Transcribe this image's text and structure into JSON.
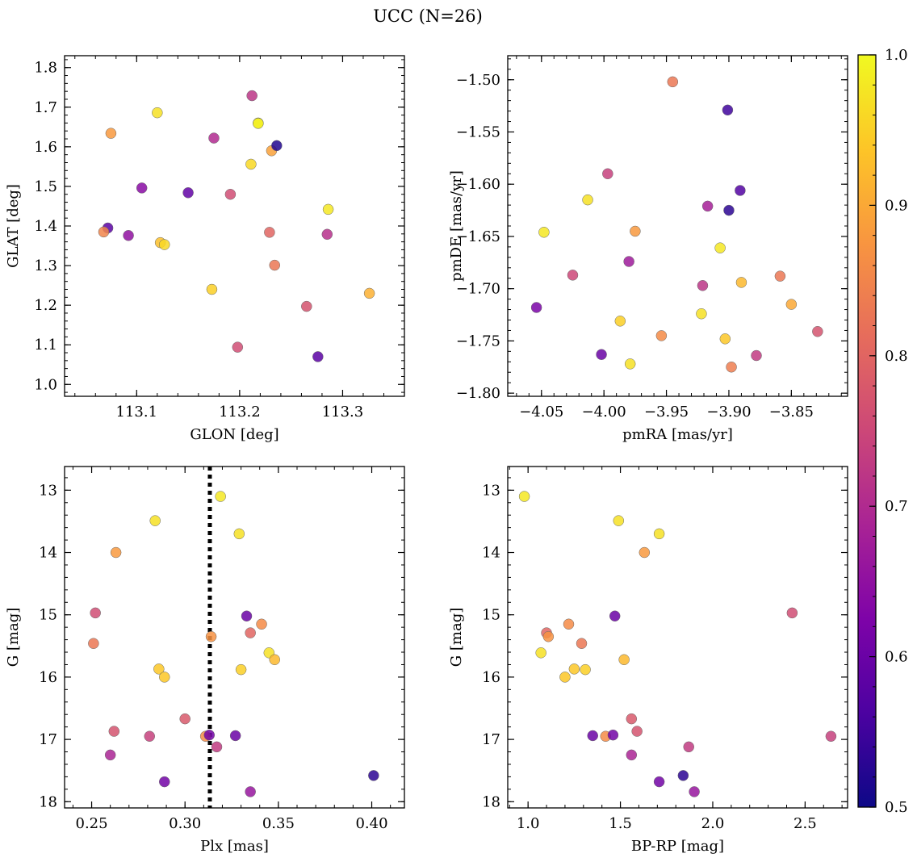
{
  "title": "UCC (N=26)",
  "colorbar": {
    "range": [
      0.5,
      1.0
    ],
    "ticks": [
      0.5,
      0.6,
      0.7,
      0.8,
      0.9,
      1.0
    ],
    "tick_labels": [
      "0.5",
      "0.6",
      "0.7",
      "0.8",
      "0.9",
      "1.0"
    ],
    "colormap": "plasma"
  },
  "chart_data": [
    {
      "type": "scatter",
      "xlabel": "GLON [deg]",
      "ylabel": "GLAT [deg]",
      "xlim": [
        113.03,
        113.36
      ],
      "ylim": [
        0.97,
        1.83
      ],
      "xticks": [
        113.1,
        113.2,
        113.3
      ],
      "xtick_labels": [
        "113.1",
        "113.2",
        "113.3"
      ],
      "yticks": [
        1.0,
        1.1,
        1.2,
        1.3,
        1.4,
        1.5,
        1.6,
        1.7,
        1.8
      ],
      "ytick_labels": [
        "1.0",
        "1.1",
        "1.2",
        "1.3",
        "1.4",
        "1.5",
        "1.6",
        "1.7",
        "1.8"
      ],
      "y_inverted": false,
      "points": [
        {
          "x": 113.075,
          "y": 1.634,
          "c": 0.88
        },
        {
          "x": 113.072,
          "y": 1.395,
          "c": 0.58
        },
        {
          "x": 113.068,
          "y": 1.385,
          "c": 0.85
        },
        {
          "x": 113.092,
          "y": 1.376,
          "c": 0.65
        },
        {
          "x": 113.105,
          "y": 1.496,
          "c": 0.64
        },
        {
          "x": 113.12,
          "y": 1.686,
          "c": 0.97
        },
        {
          "x": 113.123,
          "y": 1.358,
          "c": 0.93
        },
        {
          "x": 113.127,
          "y": 1.353,
          "c": 0.96
        },
        {
          "x": 113.15,
          "y": 1.484,
          "c": 0.59
        },
        {
          "x": 113.173,
          "y": 1.24,
          "c": 0.95
        },
        {
          "x": 113.175,
          "y": 1.622,
          "c": 0.7
        },
        {
          "x": 113.191,
          "y": 1.48,
          "c": 0.76
        },
        {
          "x": 113.198,
          "y": 1.094,
          "c": 0.76
        },
        {
          "x": 113.211,
          "y": 1.556,
          "c": 0.96
        },
        {
          "x": 113.212,
          "y": 1.729,
          "c": 0.72
        },
        {
          "x": 113.218,
          "y": 1.66,
          "c": 0.98
        },
        {
          "x": 113.229,
          "y": 1.384,
          "c": 0.8
        },
        {
          "x": 113.231,
          "y": 1.59,
          "c": 0.89
        },
        {
          "x": 113.234,
          "y": 1.301,
          "c": 0.83
        },
        {
          "x": 113.236,
          "y": 1.603,
          "c": 0.52
        },
        {
          "x": 113.265,
          "y": 1.197,
          "c": 0.77
        },
        {
          "x": 113.276,
          "y": 1.07,
          "c": 0.58
        },
        {
          "x": 113.285,
          "y": 1.379,
          "c": 0.71
        },
        {
          "x": 113.286,
          "y": 1.442,
          "c": 0.98
        },
        {
          "x": 113.326,
          "y": 1.23,
          "c": 0.91
        },
        {
          "x": 113.218,
          "y": 1.659,
          "c": 0.99
        }
      ]
    },
    {
      "type": "scatter",
      "xlabel": "pmRA [mas/yr]",
      "ylabel": "pmDE [mas/yr]",
      "xlim": [
        -4.077,
        -3.805
      ],
      "ylim": [
        -1.803,
        -1.477
      ],
      "xticks": [
        -4.05,
        -4.0,
        -3.95,
        -3.9,
        -3.85
      ],
      "xtick_labels": [
        "−4.05",
        "−4.00",
        "−3.95",
        "−3.90",
        "−3.85"
      ],
      "yticks": [
        -1.8,
        -1.75,
        -1.7,
        -1.65,
        -1.6,
        -1.55,
        -1.5
      ],
      "ytick_labels": [
        "−1.80",
        "−1.75",
        "−1.70",
        "−1.65",
        "−1.60",
        "−1.55",
        "−1.50"
      ],
      "y_inverted": false,
      "points": [
        {
          "x": -4.054,
          "y": -1.718,
          "c": 0.62
        },
        {
          "x": -4.048,
          "y": -1.646,
          "c": 0.98
        },
        {
          "x": -4.025,
          "y": -1.687,
          "c": 0.75
        },
        {
          "x": -4.013,
          "y": -1.615,
          "c": 0.97
        },
        {
          "x": -4.002,
          "y": -1.763,
          "c": 0.6
        },
        {
          "x": -3.997,
          "y": -1.59,
          "c": 0.74
        },
        {
          "x": -3.987,
          "y": -1.731,
          "c": 0.95
        },
        {
          "x": -3.98,
          "y": -1.674,
          "c": 0.67
        },
        {
          "x": -3.979,
          "y": -1.772,
          "c": 0.97
        },
        {
          "x": -3.975,
          "y": -1.645,
          "c": 0.88
        },
        {
          "x": -3.954,
          "y": -1.745,
          "c": 0.86
        },
        {
          "x": -3.945,
          "y": -1.502,
          "c": 0.83
        },
        {
          "x": -3.922,
          "y": -1.724,
          "c": 0.97
        },
        {
          "x": -3.921,
          "y": -1.697,
          "c": 0.72
        },
        {
          "x": -3.917,
          "y": -1.621,
          "c": 0.68
        },
        {
          "x": -3.907,
          "y": -1.661,
          "c": 0.98
        },
        {
          "x": -3.903,
          "y": -1.748,
          "c": 0.94
        },
        {
          "x": -3.901,
          "y": -1.529,
          "c": 0.55
        },
        {
          "x": -3.9,
          "y": -1.625,
          "c": 0.53
        },
        {
          "x": -3.898,
          "y": -1.775,
          "c": 0.84
        },
        {
          "x": -3.891,
          "y": -1.606,
          "c": 0.57
        },
        {
          "x": -3.89,
          "y": -1.694,
          "c": 0.92
        },
        {
          "x": -3.878,
          "y": -1.764,
          "c": 0.73
        },
        {
          "x": -3.859,
          "y": -1.688,
          "c": 0.83
        },
        {
          "x": -3.85,
          "y": -1.715,
          "c": 0.9
        },
        {
          "x": -3.829,
          "y": -1.741,
          "c": 0.77
        }
      ]
    },
    {
      "type": "scatter",
      "xlabel": "Plx [mas]",
      "ylabel": "G [mag]",
      "xlim": [
        0.2355,
        0.4175
      ],
      "ylim": [
        12.62,
        18.1
      ],
      "xticks": [
        0.25,
        0.3,
        0.35,
        0.4
      ],
      "xtick_labels": [
        "0.25",
        "0.30",
        "0.35",
        "0.40"
      ],
      "yticks": [
        13,
        14,
        15,
        16,
        17,
        18
      ],
      "ytick_labels": [
        "13",
        "14",
        "15",
        "16",
        "17",
        "18"
      ],
      "y_inverted": true,
      "vline": 0.3133,
      "points": [
        {
          "x": 0.319,
          "y": 13.1,
          "c": 0.98
        },
        {
          "x": 0.284,
          "y": 13.49,
          "c": 0.97
        },
        {
          "x": 0.329,
          "y": 13.7,
          "c": 0.97
        },
        {
          "x": 0.263,
          "y": 14.0,
          "c": 0.88
        },
        {
          "x": 0.252,
          "y": 14.97,
          "c": 0.76
        },
        {
          "x": 0.333,
          "y": 15.02,
          "c": 0.6
        },
        {
          "x": 0.341,
          "y": 15.15,
          "c": 0.86
        },
        {
          "x": 0.335,
          "y": 15.29,
          "c": 0.8
        },
        {
          "x": 0.314,
          "y": 15.35,
          "c": 0.87
        },
        {
          "x": 0.251,
          "y": 15.46,
          "c": 0.83
        },
        {
          "x": 0.345,
          "y": 15.61,
          "c": 0.97
        },
        {
          "x": 0.348,
          "y": 15.72,
          "c": 0.92
        },
        {
          "x": 0.286,
          "y": 15.87,
          "c": 0.94
        },
        {
          "x": 0.33,
          "y": 15.88,
          "c": 0.95
        },
        {
          "x": 0.289,
          "y": 16.0,
          "c": 0.94
        },
        {
          "x": 0.3,
          "y": 16.67,
          "c": 0.78
        },
        {
          "x": 0.262,
          "y": 16.87,
          "c": 0.77
        },
        {
          "x": 0.281,
          "y": 16.95,
          "c": 0.74
        },
        {
          "x": 0.327,
          "y": 16.94,
          "c": 0.6
        },
        {
          "x": 0.311,
          "y": 16.95,
          "c": 0.86
        },
        {
          "x": 0.313,
          "y": 16.93,
          "c": 0.61
        },
        {
          "x": 0.317,
          "y": 17.12,
          "c": 0.73
        },
        {
          "x": 0.26,
          "y": 17.25,
          "c": 0.69
        },
        {
          "x": 0.401,
          "y": 17.58,
          "c": 0.53
        },
        {
          "x": 0.289,
          "y": 17.68,
          "c": 0.61
        },
        {
          "x": 0.335,
          "y": 17.84,
          "c": 0.66
        }
      ]
    },
    {
      "type": "scatter",
      "xlabel": "BP-RP [mag]",
      "ylabel": "G [mag]",
      "xlim": [
        0.89,
        2.73
      ],
      "ylim": [
        12.62,
        18.1
      ],
      "xticks": [
        1.0,
        1.5,
        2.0,
        2.5
      ],
      "xtick_labels": [
        "1.0",
        "1.5",
        "2.0",
        "2.5"
      ],
      "yticks": [
        13,
        14,
        15,
        16,
        17,
        18
      ],
      "ytick_labels": [
        "13",
        "14",
        "15",
        "16",
        "17",
        "18"
      ],
      "y_inverted": true,
      "points": [
        {
          "x": 0.98,
          "y": 13.1,
          "c": 0.98
        },
        {
          "x": 1.49,
          "y": 13.49,
          "c": 0.97
        },
        {
          "x": 1.71,
          "y": 13.7,
          "c": 0.97
        },
        {
          "x": 1.63,
          "y": 14.0,
          "c": 0.88
        },
        {
          "x": 2.43,
          "y": 14.97,
          "c": 0.76
        },
        {
          "x": 1.47,
          "y": 15.02,
          "c": 0.6
        },
        {
          "x": 1.22,
          "y": 15.15,
          "c": 0.86
        },
        {
          "x": 1.1,
          "y": 15.29,
          "c": 0.8
        },
        {
          "x": 1.11,
          "y": 15.35,
          "c": 0.87
        },
        {
          "x": 1.29,
          "y": 15.46,
          "c": 0.83
        },
        {
          "x": 1.07,
          "y": 15.61,
          "c": 0.97
        },
        {
          "x": 1.52,
          "y": 15.72,
          "c": 0.92
        },
        {
          "x": 1.25,
          "y": 15.87,
          "c": 0.94
        },
        {
          "x": 1.31,
          "y": 15.88,
          "c": 0.95
        },
        {
          "x": 1.2,
          "y": 16.0,
          "c": 0.94
        },
        {
          "x": 1.56,
          "y": 16.67,
          "c": 0.78
        },
        {
          "x": 1.59,
          "y": 16.87,
          "c": 0.77
        },
        {
          "x": 2.64,
          "y": 16.95,
          "c": 0.74
        },
        {
          "x": 1.35,
          "y": 16.94,
          "c": 0.6
        },
        {
          "x": 1.42,
          "y": 16.95,
          "c": 0.86
        },
        {
          "x": 1.46,
          "y": 16.93,
          "c": 0.61
        },
        {
          "x": 1.87,
          "y": 17.12,
          "c": 0.73
        },
        {
          "x": 1.56,
          "y": 17.25,
          "c": 0.69
        },
        {
          "x": 1.84,
          "y": 17.58,
          "c": 0.53
        },
        {
          "x": 1.71,
          "y": 17.68,
          "c": 0.61
        },
        {
          "x": 1.9,
          "y": 17.84,
          "c": 0.66
        }
      ]
    }
  ]
}
